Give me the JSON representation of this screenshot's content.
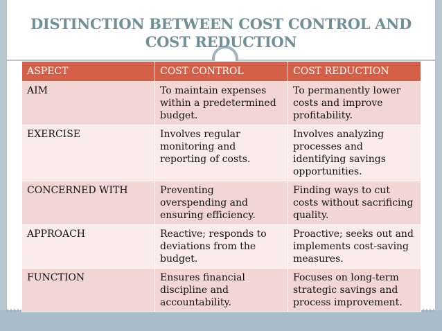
{
  "slide": {
    "title_line1": "DISTINCTION BETWEEN COST CONTROL AND",
    "title_line2": "COST REDUCTION"
  },
  "table": {
    "headers": [
      "ASPECT",
      "COST  CONTROL",
      "COST  REDUCTION"
    ],
    "rows": [
      [
        "AIM",
        "To maintain expenses within a predetermined budget.",
        "To permanently lower costs and improve profitability."
      ],
      [
        "EXERCISE",
        "Involves regular monitoring and reporting of costs.",
        "Involves analyzing processes and identifying savings opportunities."
      ],
      [
        "CONCERNED WITH",
        "Preventing overspending and ensuring efficiency.",
        "Finding ways to cut costs without sacrificing quality."
      ],
      [
        "APPROACH",
        "Reactive; responds to deviations from the budget.",
        "Proactive; seeks out and implements cost-saving measures."
      ],
      [
        "FUNCTION",
        "Ensures financial discipline and accountability.",
        "Focuses on long-term strategic savings and process improvement."
      ]
    ]
  },
  "colors": {
    "title": "#6f8f99",
    "header_bg": "#d5604a",
    "row_odd": "#f2d6d4",
    "row_even": "#fbecea",
    "frame": "#b7c5cf"
  }
}
